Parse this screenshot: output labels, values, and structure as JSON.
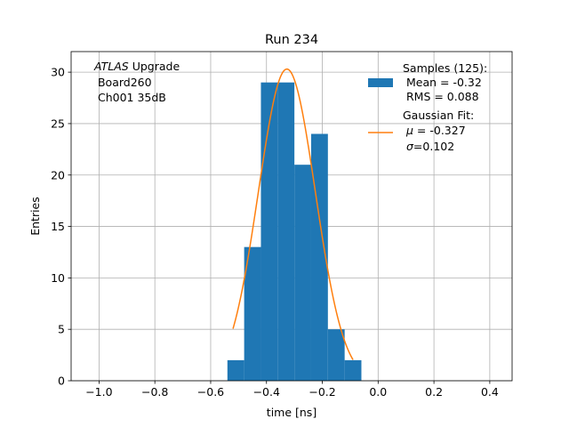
{
  "chart_data": {
    "type": "bar",
    "title": "Run 234",
    "xlabel": "time [ns]",
    "ylabel": "Entries",
    "xlim": [
      -1.1,
      0.48
    ],
    "ylim": [
      0,
      32
    ],
    "xticks": [
      -1.0,
      -0.8,
      -0.6,
      -0.4,
      -0.2,
      0.0,
      0.2,
      0.4
    ],
    "xtick_labels": [
      "−1.0",
      "−0.8",
      "−0.6",
      "−0.4",
      "−0.2",
      "0.0",
      "0.2",
      "0.4"
    ],
    "yticks": [
      0,
      5,
      10,
      15,
      20,
      25,
      30
    ],
    "ytick_labels": [
      "0",
      "5",
      "10",
      "15",
      "20",
      "25",
      "30"
    ],
    "grid": true,
    "legend_position": "top-right",
    "annotation": {
      "italic": "ATLAS",
      "line1_rest": " Upgrade",
      "line2": " Board260",
      "line3": " Ch001 35dB"
    },
    "histogram": {
      "name": "Samples (125):",
      "color": "#1f77b4",
      "bin_edges": [
        -0.54,
        -0.48,
        -0.42,
        -0.36,
        -0.3,
        -0.24,
        -0.18,
        -0.12,
        -0.06
      ],
      "counts": [
        2,
        13,
        29,
        29,
        21,
        24,
        5,
        2
      ]
    },
    "gaussian_fit": {
      "name": "Gaussian Fit:",
      "color": "#ff7f0e",
      "amplitude": 30.3,
      "mu": -0.327,
      "sigma": 0.102,
      "x_range": [
        -0.52,
        -0.09
      ]
    },
    "legend": {
      "hist_title": "Samples (125):",
      "hist_mean": " Mean = -0.32",
      "hist_rms": " RMS = 0.088",
      "fit_title": "Gaussian Fit:",
      "fit_mu_symbol": "μ",
      "fit_mu_value": " = -0.327",
      "fit_sigma_symbol": "σ",
      "fit_sigma_value": "=0.102"
    }
  }
}
